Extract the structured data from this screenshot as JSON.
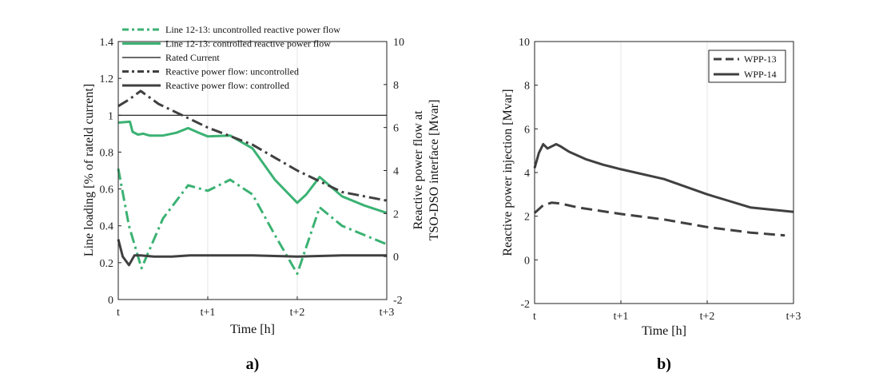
{
  "colors": {
    "green": "#3bb273",
    "dark": "#404040",
    "black": "#111111",
    "grid": "#e6e6e6"
  },
  "chart_data": [
    {
      "type": "line",
      "panel_label": "a)",
      "xlabel": "Time [h]",
      "ylabel_left": "Line loading [% of rateld current]",
      "ylabel_right_line1": "Reactive power flow at",
      "ylabel_right_line2": "TSO-DSO interface [Mvar]",
      "xlim": [
        0,
        3
      ],
      "ylim_left": [
        0,
        1.4
      ],
      "ylim_right": [
        -2,
        10
      ],
      "xticks": [
        0,
        1,
        2,
        3
      ],
      "xtick_labels": [
        "t",
        "t+1",
        "t+2",
        "t+3"
      ],
      "yticks_left": [
        0,
        0.2,
        0.4,
        0.6,
        0.8,
        1,
        1.2,
        1.4
      ],
      "ytick_labels_left": [
        "0",
        "0.2",
        "0.4",
        "0.6",
        "0.8",
        "1",
        "1.2",
        "1.4"
      ],
      "yticks_right": [
        -2,
        0,
        2,
        4,
        6,
        8,
        10
      ],
      "ytick_labels_right": [
        "-2",
        "0",
        "2",
        "4",
        "6",
        "8",
        "10"
      ],
      "grid": "vertical",
      "legend_position": "top-left",
      "series": [
        {
          "name": "Line 12-13: uncontrolled reactive power flow",
          "axis": "left",
          "color": "#3bb273",
          "style": "dashdot",
          "x": [
            0,
            0.12,
            0.26,
            0.5,
            0.78,
            1.0,
            1.25,
            1.5,
            1.75,
            2.0,
            2.25,
            2.5,
            2.75,
            3.0
          ],
          "y": [
            0.71,
            0.4,
            0.17,
            0.44,
            0.62,
            0.59,
            0.65,
            0.57,
            0.35,
            0.14,
            0.5,
            0.4,
            0.35,
            0.3
          ]
        },
        {
          "name": "Line 12-13: controlled reactive power flow",
          "axis": "left",
          "color": "#3bb273",
          "style": "solid",
          "x": [
            0,
            0.13,
            0.16,
            0.22,
            0.28,
            0.35,
            0.5,
            0.65,
            0.78,
            0.9,
            1.0,
            1.25,
            1.5,
            1.75,
            2.0,
            2.1,
            2.25,
            2.5,
            2.75,
            3.0
          ],
          "y": [
            0.96,
            0.965,
            0.91,
            0.895,
            0.9,
            0.89,
            0.89,
            0.905,
            0.93,
            0.905,
            0.885,
            0.89,
            0.82,
            0.65,
            0.525,
            0.57,
            0.665,
            0.56,
            0.51,
            0.47
          ]
        },
        {
          "name": "Rated Current",
          "axis": "left",
          "color": "#111111",
          "style": "thin",
          "x": [
            0,
            3
          ],
          "y": [
            1,
            1
          ]
        },
        {
          "name": "Reactive power flow: uncontrolled",
          "axis": "right",
          "color": "#404040",
          "style": "dashdot",
          "x": [
            0,
            0.12,
            0.25,
            0.45,
            0.75,
            1.0,
            1.25,
            1.5,
            1.75,
            2.0,
            2.25,
            2.5,
            2.75,
            3.0
          ],
          "y": [
            7.0,
            7.3,
            7.7,
            7.1,
            6.5,
            6.0,
            5.6,
            5.2,
            4.6,
            4.0,
            3.5,
            3.0,
            2.8,
            2.6
          ]
        },
        {
          "name": "Reactive power flow: controlled",
          "axis": "right",
          "color": "#404040",
          "style": "solid",
          "x": [
            0,
            0.05,
            0.12,
            0.18,
            0.25,
            0.4,
            0.6,
            0.8,
            1.0,
            1.5,
            2.0,
            2.5,
            3.0
          ],
          "y": [
            0.8,
            0.0,
            -0.4,
            0.05,
            0.05,
            0.0,
            0.0,
            0.05,
            0.05,
            0.05,
            0.0,
            0.05,
            0.05
          ]
        }
      ]
    },
    {
      "type": "line",
      "panel_label": "b)",
      "xlabel": "Time [h]",
      "ylabel": "Reactive power injection [Mvar]",
      "xlim": [
        0,
        3
      ],
      "ylim": [
        -2,
        10
      ],
      "xticks": [
        0,
        1,
        2,
        3
      ],
      "xtick_labels": [
        "t",
        "t+1",
        "t+2",
        "t+3"
      ],
      "yticks": [
        -2,
        0,
        2,
        4,
        6,
        8,
        10
      ],
      "ytick_labels": [
        "-2",
        "0",
        "2",
        "4",
        "6",
        "8",
        "10"
      ],
      "grid": "vertical",
      "legend_position": "top-right",
      "series": [
        {
          "name": "WPP-13",
          "color": "#404040",
          "style": "dashed",
          "x": [
            0,
            0.1,
            0.2,
            0.3,
            0.5,
            1.0,
            1.5,
            2.0,
            2.5,
            2.9
          ],
          "y": [
            2.15,
            2.5,
            2.62,
            2.58,
            2.4,
            2.1,
            1.85,
            1.5,
            1.25,
            1.12
          ]
        },
        {
          "name": "WPP-14",
          "color": "#404040",
          "style": "solid",
          "x": [
            0,
            0.05,
            0.1,
            0.15,
            0.2,
            0.25,
            0.3,
            0.4,
            0.6,
            0.8,
            1.0,
            1.5,
            2.0,
            2.25,
            2.5,
            2.75,
            3.0
          ],
          "y": [
            4.2,
            4.9,
            5.3,
            5.1,
            5.2,
            5.3,
            5.2,
            4.95,
            4.6,
            4.35,
            4.15,
            3.7,
            3.0,
            2.7,
            2.4,
            2.3,
            2.2
          ]
        }
      ]
    }
  ]
}
